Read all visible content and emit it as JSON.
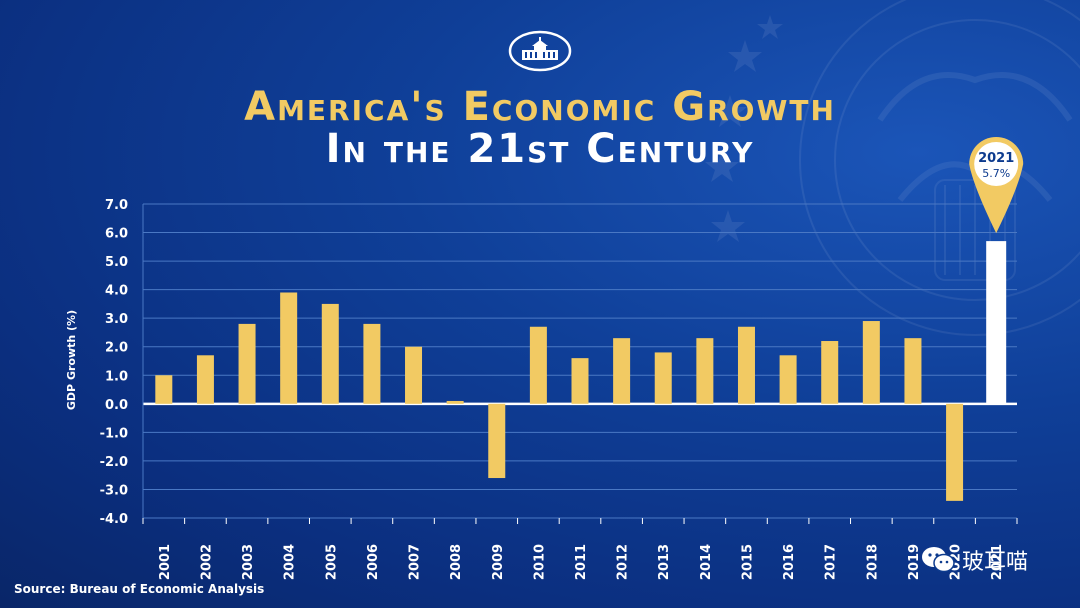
{
  "header": {
    "title_line1": "America's Economic Growth",
    "title_line2": "In the 21st Century"
  },
  "chart_data": {
    "type": "bar",
    "title": "America's Economic Growth In the 21st Century",
    "xlabel": "",
    "ylabel": "GDP Growth (%)",
    "ylim": [
      -4.0,
      7.0
    ],
    "yticks": [
      7.0,
      6.0,
      5.0,
      4.0,
      3.0,
      2.0,
      1.0,
      0.0,
      -1.0,
      -2.0,
      -3.0,
      -4.0
    ],
    "ytick_labels": [
      "7.0",
      "6.0",
      "5.0",
      "4.0",
      "3.0",
      "2.0",
      "1.0",
      "0.0",
      "-1.0",
      "-2.0",
      "-3.0",
      "-4.0"
    ],
    "categories": [
      "2001",
      "2002",
      "2003",
      "2004",
      "2005",
      "2006",
      "2007",
      "2008",
      "2009",
      "2010",
      "2011",
      "2012",
      "2013",
      "2014",
      "2015",
      "2016",
      "2017",
      "2018",
      "2019",
      "2020",
      "2021"
    ],
    "values": [
      1.0,
      1.7,
      2.8,
      3.9,
      3.5,
      2.8,
      2.0,
      0.1,
      -2.6,
      2.7,
      1.6,
      2.3,
      1.8,
      2.3,
      2.7,
      1.7,
      2.2,
      2.9,
      2.3,
      -3.4,
      5.7
    ],
    "highlight": {
      "category": "2021",
      "label_year": "2021",
      "label_value": "5.7%"
    },
    "grid": true,
    "colors": {
      "bar": "#f2ca63",
      "highlight_bar": "#ffffff",
      "grid": "#4a78c4",
      "axis": "#ffffff",
      "pin": "#f2ca63",
      "pin_text": "#0d3b8e"
    }
  },
  "footer": {
    "source": "Source: Bureau of Economic Analysis"
  },
  "watermark": {
    "text": "玻耳喵",
    "icon": "wechat-icon"
  },
  "logo": {
    "icon": "white-house-icon"
  }
}
